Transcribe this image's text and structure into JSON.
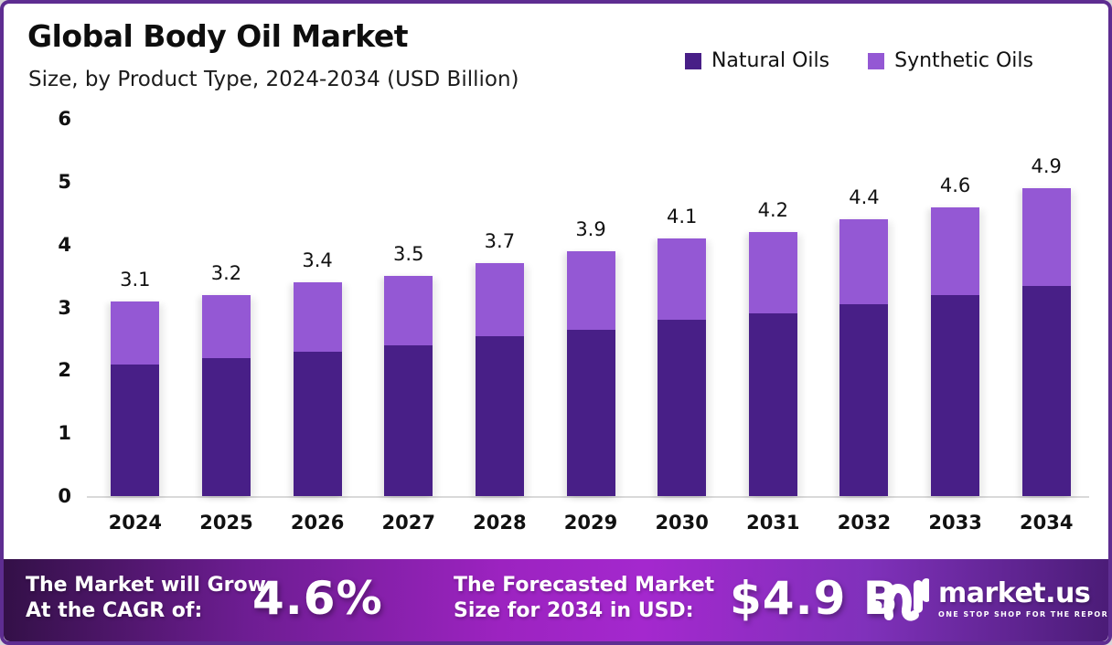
{
  "header": {
    "title": "Global Body Oil Market",
    "subtitle": "Size, by Product Type, 2024-2034 (USD Billion)"
  },
  "colors": {
    "natural_oils": "#481f87",
    "synthetic_oils": "#9458d4",
    "frame_border": "#5e2d91",
    "banner_gradient_start": "#331047",
    "banner_gradient_mid": "#a428ce",
    "banner_gradient_end": "#4b1c77"
  },
  "chart_data": {
    "type": "bar",
    "stacked": true,
    "title": "Global Body Oil Market",
    "subtitle": "Size, by Product Type, 2024-2034 (USD Billion)",
    "unit": "USD Billion",
    "categories": [
      "2024",
      "2025",
      "2026",
      "2027",
      "2028",
      "2029",
      "2030",
      "2031",
      "2032",
      "2033",
      "2034"
    ],
    "series": [
      {
        "name": "Natural Oils",
        "color": "#481f87",
        "values": [
          2.1,
          2.2,
          2.3,
          2.4,
          2.55,
          2.65,
          2.8,
          2.9,
          3.05,
          3.2,
          3.35
        ]
      },
      {
        "name": "Synthetic Oils",
        "color": "#9458d4",
        "values": [
          1.0,
          1.0,
          1.1,
          1.1,
          1.15,
          1.25,
          1.3,
          1.3,
          1.35,
          1.4,
          1.55
        ]
      }
    ],
    "totals": [
      3.1,
      3.2,
      3.4,
      3.5,
      3.7,
      3.9,
      4.1,
      4.2,
      4.4,
      4.6,
      4.9
    ],
    "total_labels": [
      "3.1",
      "3.2",
      "3.4",
      "3.5",
      "3.7",
      "3.9",
      "4.1",
      "4.2",
      "4.4",
      "4.6",
      "4.9"
    ],
    "yticks": [
      0,
      1,
      2,
      3,
      4,
      5,
      6
    ],
    "ylim": [
      0,
      6
    ],
    "xlabel": "",
    "ylabel": "",
    "grid": false,
    "legend_position": "top-right"
  },
  "banner": {
    "cagr_label_line1": "The Market will Grow",
    "cagr_label_line2": "At the CAGR of:",
    "cagr_value": "4.6%",
    "forecast_label_line1": "The Forecasted Market",
    "forecast_label_line2": "Size for 2034 in USD:",
    "forecast_value": "$4.9 B",
    "logo": {
      "wordmark": "market.us",
      "tagline": "ONE STOP SHOP FOR THE REPORTS"
    }
  }
}
